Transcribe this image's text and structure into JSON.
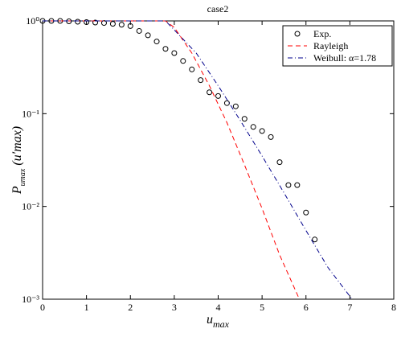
{
  "chart_data": {
    "type": "line",
    "title": "case2",
    "x_label": {
      "text": "u",
      "sub": "max"
    },
    "y_label": {
      "text": "P",
      "sub": "umax",
      "arg": "(u′max)"
    },
    "xlim": [
      0,
      8
    ],
    "xticks": [
      0,
      1,
      2,
      3,
      4,
      5,
      6,
      7,
      8
    ],
    "ylim": [
      0.001,
      1
    ],
    "log_y": true,
    "yticks": [
      {
        "value": 0.001,
        "label": "10⁻³"
      },
      {
        "value": 0.01,
        "label": "10⁻²"
      },
      {
        "value": 0.1,
        "label": "10⁻¹"
      },
      {
        "value": 1,
        "label": "10⁰"
      }
    ],
    "legend": "upper right",
    "series": [
      {
        "name": "Exp.",
        "style": "markers",
        "color": "#000000",
        "x": [
          0,
          0.2,
          0.4,
          0.6,
          0.8,
          1.0,
          1.2,
          1.4,
          1.6,
          1.8,
          2.0,
          2.2,
          2.4,
          2.6,
          2.8,
          3.0,
          3.2,
          3.4,
          3.6,
          3.8,
          4.0,
          4.2,
          4.4,
          4.6,
          4.8,
          5.0,
          5.2,
          5.4,
          5.6,
          5.8,
          6.0,
          6.2
        ],
        "values": [
          1,
          1,
          1,
          0.99,
          0.98,
          0.97,
          0.96,
          0.95,
          0.93,
          0.91,
          0.88,
          0.78,
          0.7,
          0.6,
          0.5,
          0.45,
          0.37,
          0.3,
          0.23,
          0.17,
          0.155,
          0.13,
          0.12,
          0.088,
          0.072,
          0.065,
          0.056,
          0.03,
          0.017,
          0.017,
          0.0086,
          0.0044
        ]
      },
      {
        "name": "Rayleigh",
        "style": "dashed",
        "color": "#ff0000",
        "x": [
          0,
          1,
          2,
          2.8,
          3.0,
          3.4,
          3.8,
          4.2,
          4.6,
          5.0,
          5.4,
          5.85
        ],
        "values": [
          1,
          1,
          1,
          1,
          0.85,
          0.45,
          0.2,
          0.08,
          0.028,
          0.0095,
          0.003,
          0.001
        ]
      },
      {
        "name": "Weibull: α=1.78",
        "style": "dashdot",
        "color": "#00008b",
        "x": [
          0,
          1,
          2,
          2.8,
          3.0,
          3.5,
          4.0,
          4.5,
          5.0,
          5.5,
          6.0,
          6.5,
          7.05
        ],
        "values": [
          1,
          1,
          1,
          1,
          0.8,
          0.45,
          0.2,
          0.085,
          0.035,
          0.014,
          0.0055,
          0.0022,
          0.001
        ]
      }
    ]
  }
}
